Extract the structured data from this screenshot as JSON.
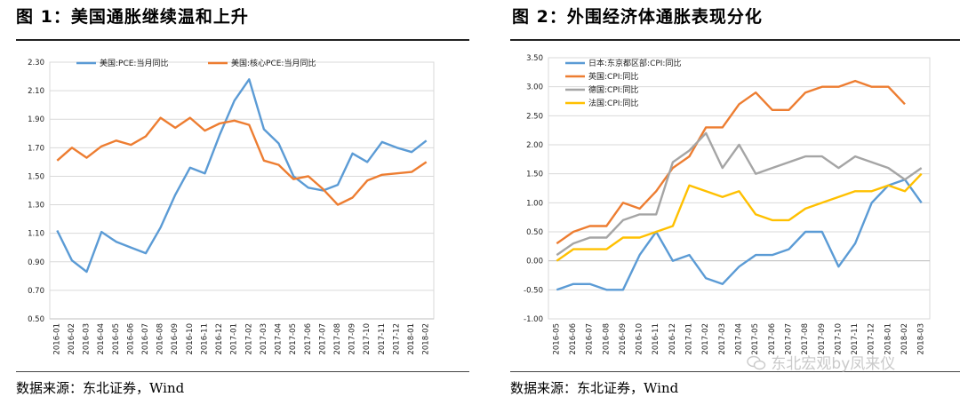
{
  "panel1": {
    "title": "图 1：美国通胀继续温和上升",
    "source": "数据来源：东北证券，Wind"
  },
  "panel2": {
    "title": "图 2：外围经济体通胀表现分化",
    "source": "数据来源：东北证券，Wind"
  },
  "watermark": "东北宏观by凤来仪",
  "chart_data": [
    {
      "type": "line",
      "categories": [
        "2016-01",
        "2016-02",
        "2016-03",
        "2016-04",
        "2016-05",
        "2016-06",
        "2016-07",
        "2016-08",
        "2016-09",
        "2016-10",
        "2016-11",
        "2016-12",
        "2017-01",
        "2017-02",
        "2017-03",
        "2017-04",
        "2017-05",
        "2017-06",
        "2017-07",
        "2017-08",
        "2017-09",
        "2017-10",
        "2017-11",
        "2017-12",
        "2018-01",
        "2018-02"
      ],
      "ylim": [
        0.5,
        2.3
      ],
      "yticks": [
        "2.30",
        "2.10",
        "1.90",
        "1.70",
        "1.50",
        "1.30",
        "1.10",
        "0.90",
        "0.70",
        "0.50"
      ],
      "legend_position": "top",
      "grid": true,
      "series": [
        {
          "name": "美国:PCE:当月同比",
          "color": "#5B9BD5",
          "values": [
            1.12,
            0.91,
            0.83,
            1.11,
            1.04,
            1.0,
            0.96,
            1.14,
            1.37,
            1.56,
            1.52,
            1.79,
            2.03,
            2.18,
            1.83,
            1.73,
            1.5,
            1.42,
            1.4,
            1.44,
            1.66,
            1.6,
            1.74,
            1.7,
            1.67,
            1.75
          ]
        },
        {
          "name": "美国:核心PCE:当月同比",
          "color": "#ED7D31",
          "values": [
            1.61,
            1.7,
            1.63,
            1.71,
            1.75,
            1.72,
            1.78,
            1.91,
            1.84,
            1.91,
            1.82,
            1.87,
            1.89,
            1.86,
            1.61,
            1.58,
            1.48,
            1.5,
            1.41,
            1.3,
            1.35,
            1.47,
            1.51,
            1.52,
            1.53,
            1.6
          ]
        }
      ]
    },
    {
      "type": "line",
      "categories": [
        "2016-05",
        "2016-06",
        "2016-07",
        "2016-08",
        "2016-09",
        "2016-10",
        "2016-11",
        "2016-12",
        "2017-01",
        "2017-02",
        "2017-03",
        "2017-04",
        "2017-05",
        "2017-06",
        "2017-07",
        "2017-08",
        "2017-09",
        "2017-10",
        "2017-11",
        "2017-12",
        "2018-01",
        "2018-02",
        "2018-03"
      ],
      "ylim": [
        -1.0,
        3.5
      ],
      "yticks": [
        "3.50",
        "3.00",
        "2.50",
        "2.00",
        "1.50",
        "1.00",
        "0.50",
        "0.00",
        "-0.50",
        "-1.00"
      ],
      "legend_position": "top-left",
      "grid": true,
      "series": [
        {
          "name": "日本:东京都区部:CPI:同比",
          "color": "#5B9BD5",
          "values": [
            -0.5,
            -0.4,
            -0.4,
            -0.5,
            -0.5,
            0.1,
            0.5,
            0.0,
            0.1,
            -0.3,
            -0.4,
            -0.1,
            0.1,
            0.1,
            0.2,
            0.5,
            0.5,
            -0.1,
            0.3,
            1.0,
            1.3,
            1.4,
            1.0
          ]
        },
        {
          "name": "英国:CPI:同比",
          "color": "#ED7D31",
          "values": [
            0.3,
            0.5,
            0.6,
            0.6,
            1.0,
            0.9,
            1.2,
            1.6,
            1.8,
            2.3,
            2.3,
            2.7,
            2.9,
            2.6,
            2.6,
            2.9,
            3.0,
            3.0,
            3.1,
            3.0,
            3.0,
            2.7,
            null
          ]
        },
        {
          "name": "德国:CPI:同比",
          "color": "#A5A5A5",
          "values": [
            0.1,
            0.3,
            0.4,
            0.4,
            0.7,
            0.8,
            0.8,
            1.7,
            1.9,
            2.2,
            1.6,
            2.0,
            1.5,
            1.6,
            1.7,
            1.8,
            1.8,
            1.6,
            1.8,
            1.7,
            1.6,
            1.4,
            1.6
          ]
        },
        {
          "name": "法国:CPI:同比",
          "color": "#FFC000",
          "values": [
            0.0,
            0.2,
            0.2,
            0.2,
            0.4,
            0.4,
            0.5,
            0.6,
            1.3,
            1.2,
            1.1,
            1.2,
            0.8,
            0.7,
            0.7,
            0.9,
            1.0,
            1.1,
            1.2,
            1.2,
            1.3,
            1.2,
            1.5
          ]
        }
      ]
    }
  ]
}
